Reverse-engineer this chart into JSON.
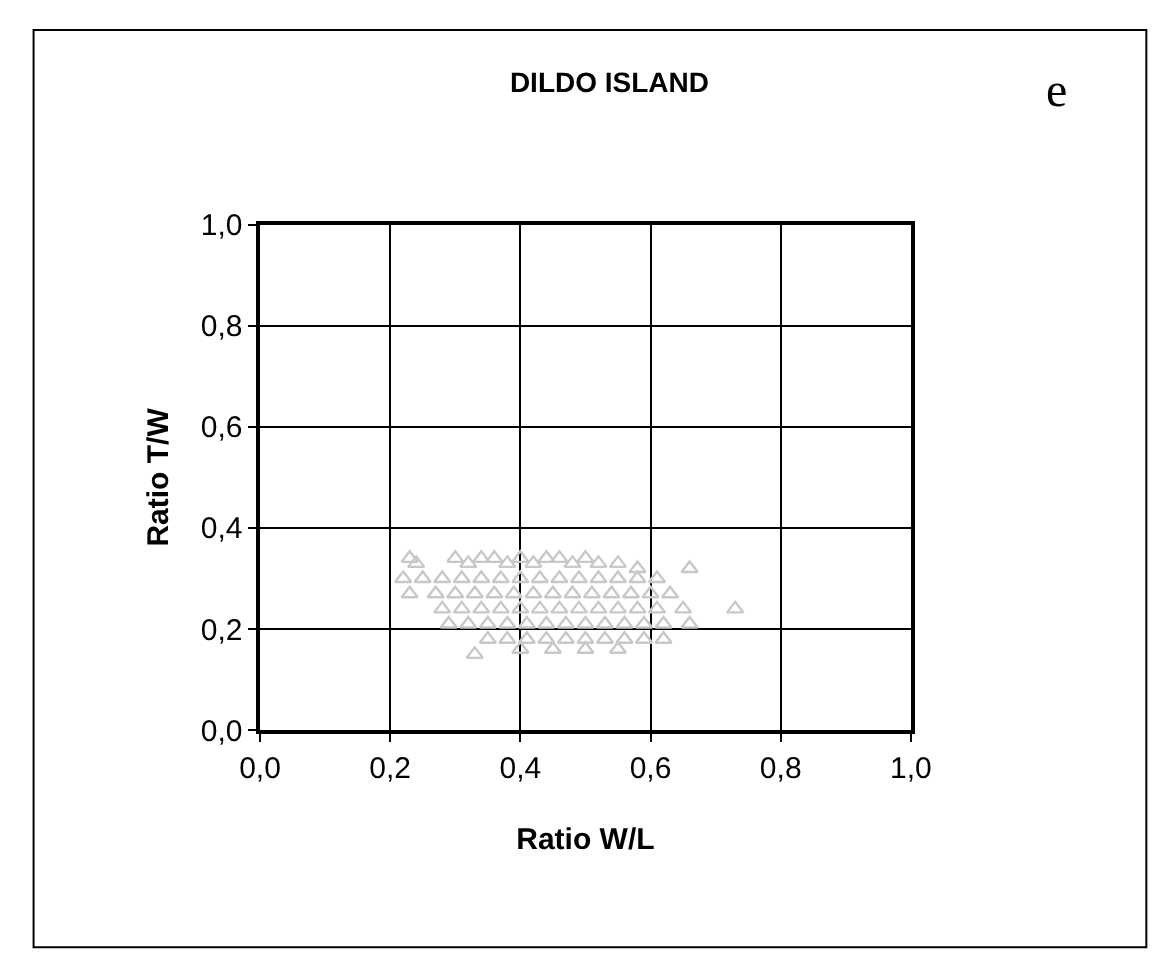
{
  "chart_data": {
    "type": "scatter",
    "title": "DILDO ISLAND",
    "annotations": [
      "e"
    ],
    "xlabel": "Ratio W/L",
    "ylabel": "Ratio T/W",
    "xlim": [
      0,
      1
    ],
    "ylim": [
      0,
      1
    ],
    "xticks": [
      {
        "value": 0,
        "label": "0,0"
      },
      {
        "value": 0.2,
        "label": "0,2"
      },
      {
        "value": 0.4,
        "label": "0,4"
      },
      {
        "value": 0.6,
        "label": "0,6"
      },
      {
        "value": 0.8,
        "label": "0,8"
      },
      {
        "value": 1,
        "label": "1,0"
      }
    ],
    "yticks": [
      {
        "value": 0,
        "label": "0,0"
      },
      {
        "value": 0.2,
        "label": "0,2"
      },
      {
        "value": 0.4,
        "label": "0,4"
      },
      {
        "value": 0.6,
        "label": "0,6"
      },
      {
        "value": 0.8,
        "label": "0,8"
      },
      {
        "value": 1,
        "label": "1,0"
      }
    ],
    "grid": true,
    "marker": "triangle",
    "series": [
      {
        "color": "#c8c8c8",
        "x": [
          0.23,
          0.24,
          0.3,
          0.32,
          0.34,
          0.36,
          0.38,
          0.4,
          0.42,
          0.44,
          0.46,
          0.48,
          0.5,
          0.52,
          0.55,
          0.58,
          0.22,
          0.25,
          0.28,
          0.31,
          0.34,
          0.37,
          0.4,
          0.43,
          0.46,
          0.49,
          0.52,
          0.55,
          0.58,
          0.61,
          0.66,
          0.23,
          0.27,
          0.3,
          0.33,
          0.36,
          0.39,
          0.42,
          0.45,
          0.48,
          0.51,
          0.54,
          0.57,
          0.6,
          0.63,
          0.28,
          0.31,
          0.34,
          0.37,
          0.4,
          0.43,
          0.46,
          0.49,
          0.52,
          0.55,
          0.58,
          0.61,
          0.65,
          0.73,
          0.29,
          0.32,
          0.35,
          0.38,
          0.41,
          0.44,
          0.47,
          0.5,
          0.53,
          0.56,
          0.59,
          0.62,
          0.66,
          0.35,
          0.38,
          0.41,
          0.44,
          0.47,
          0.5,
          0.53,
          0.56,
          0.59,
          0.62,
          0.4,
          0.45,
          0.5,
          0.55,
          0.33
        ],
        "values": [
          0.34,
          0.33,
          0.34,
          0.33,
          0.34,
          0.34,
          0.33,
          0.34,
          0.33,
          0.34,
          0.34,
          0.33,
          0.34,
          0.33,
          0.33,
          0.32,
          0.3,
          0.3,
          0.3,
          0.3,
          0.3,
          0.3,
          0.3,
          0.3,
          0.3,
          0.3,
          0.3,
          0.3,
          0.3,
          0.3,
          0.32,
          0.27,
          0.27,
          0.27,
          0.27,
          0.27,
          0.27,
          0.27,
          0.27,
          0.27,
          0.27,
          0.27,
          0.27,
          0.27,
          0.27,
          0.24,
          0.24,
          0.24,
          0.24,
          0.24,
          0.24,
          0.24,
          0.24,
          0.24,
          0.24,
          0.24,
          0.24,
          0.24,
          0.24,
          0.21,
          0.21,
          0.21,
          0.21,
          0.21,
          0.21,
          0.21,
          0.21,
          0.21,
          0.21,
          0.21,
          0.21,
          0.21,
          0.18,
          0.18,
          0.18,
          0.18,
          0.18,
          0.18,
          0.18,
          0.18,
          0.18,
          0.18,
          0.16,
          0.16,
          0.16,
          0.16,
          0.15
        ]
      }
    ]
  }
}
